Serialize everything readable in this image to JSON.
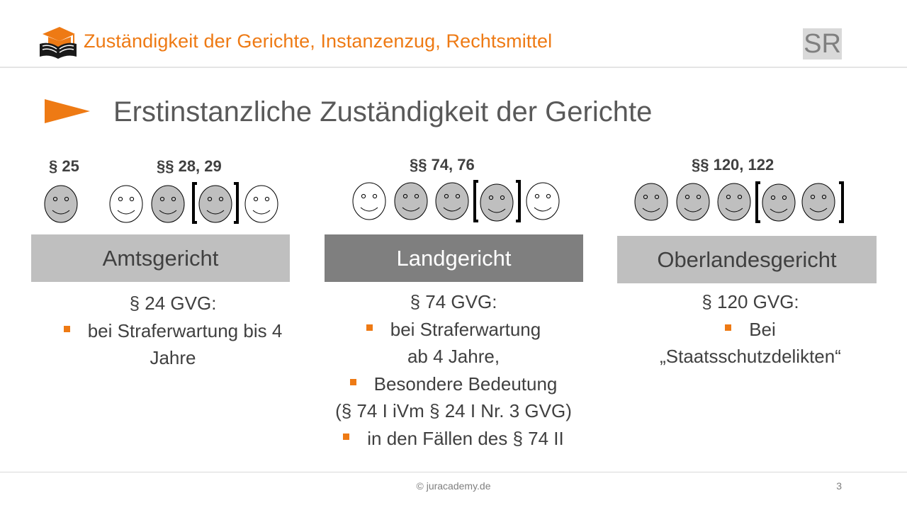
{
  "header": {
    "title": "Zuständigkeit der Gerichte, Instanzenzug, Rechtsmittel",
    "badge": "SR",
    "logo_icon": "graduation-cap-book-icon"
  },
  "slide": {
    "title": "Erstinstanzliche Zuständigkeit der Gerichte",
    "pointer_icon": "orange-triangle-pointer-icon"
  },
  "colors": {
    "accent": "#ee7a14",
    "box_light": "#bfbfbf",
    "box_dark": "#7f7f7f",
    "face_filled": "#bfbfbf",
    "face_empty": "#ffffff"
  },
  "courts": [
    {
      "name": "Amtsgericht",
      "paragraph_labels": [
        "§ 25",
        "§§ 28, 29"
      ],
      "judges": {
        "§ 25": [
          "filled"
        ],
        "§§ 28, 29": [
          "empty",
          "filled",
          "filled-bracketed",
          "empty"
        ]
      },
      "heading": "§ 24 GVG:",
      "lines": [
        "bei Straferwartung bis 4",
        "Jahre"
      ]
    },
    {
      "name": "Landgericht",
      "paragraph_labels": [
        "§§ 74, 76"
      ],
      "judges": [
        "empty",
        "filled",
        "filled",
        "filled-bracketed",
        "empty"
      ],
      "heading": "§ 74 GVG:",
      "lines": [
        "bei Straferwartung",
        "ab 4 Jahre,",
        "Besondere Bedeutung",
        "(§ 74 I iVm § 24 I Nr. 3 GVG)",
        "in den Fällen des § 74 II"
      ]
    },
    {
      "name": "Oberlandesgericht",
      "paragraph_labels": [
        "§§ 120, 122"
      ],
      "judges": [
        "filled",
        "filled",
        "filled",
        "filled-bracketed",
        "filled-bracketed"
      ],
      "heading": "§ 120 GVG:",
      "lines": [
        "Bei",
        "„Staatsschutzdelikten“"
      ]
    }
  ],
  "footer": {
    "copyright": "© juracademy.de",
    "page_number": "3"
  }
}
